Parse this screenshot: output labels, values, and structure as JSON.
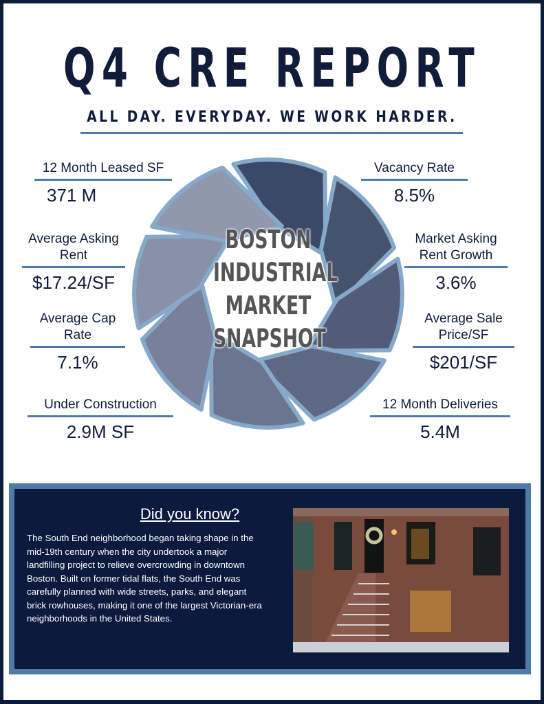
{
  "header": {
    "title": "Q4 CRE REPORT",
    "tagline": "ALL DAY. EVERYDAY. WE WORK HARDER."
  },
  "snapshot": {
    "center_lines": [
      "BOSTON",
      "INDUSTRIAL",
      "MARKET",
      "SNAPSHOT"
    ],
    "stats": [
      {
        "label": "12 Month Leased SF",
        "value": "371 M"
      },
      {
        "label": "Average Asking Rent",
        "value": "$17.24/SF"
      },
      {
        "label": "Average Cap Rate",
        "value": "7.1%"
      },
      {
        "label": "Under Construction",
        "value": "2.9M SF"
      },
      {
        "label": "Vacancy Rate",
        "value": "8.5%"
      },
      {
        "label": "Market Asking Rent Growth",
        "value": "3.6%"
      },
      {
        "label": "Average Sale Price/SF",
        "value": "$201/SF"
      },
      {
        "label": "12 Month Deliveries",
        "value": "5.4M"
      }
    ]
  },
  "did_you_know": {
    "heading": "Did you know?",
    "body": "The South End neighborhood began taking shape in the mid-19th century when the city undertook a major landfilling project to relieve overcrowding in downtown Boston. Built on former tidal flats, the South End was carefully planned with wide streets, parks, and elegant brick rowhouses, making it one of the largest Victorian-era neighborhoods in the United States."
  },
  "colors": {
    "navy": "#0c1a3e",
    "accent": "#4f7ba6",
    "blades": [
      "#3b4868",
      "#46536f",
      "#515c7a",
      "#5d6884",
      "#6a7590",
      "#77819a",
      "#8891a7",
      "#8f98ad"
    ]
  }
}
